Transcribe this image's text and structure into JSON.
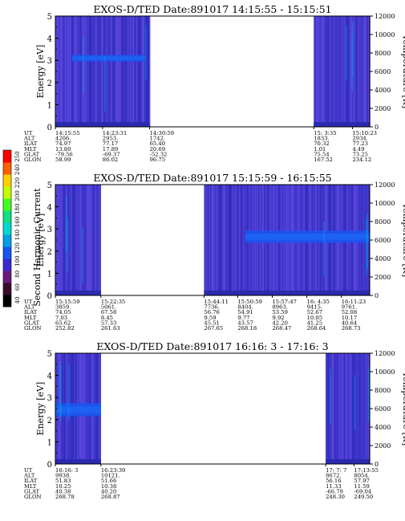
{
  "chart_data": {
    "type": "heatmap",
    "colorbar": {
      "label": "Second Harmonic Current",
      "ticks": [
        "40",
        "60",
        "80",
        "100",
        "120",
        "140",
        "160",
        "180",
        "200",
        "220",
        "240",
        "250"
      ],
      "colors": [
        "#000000",
        "#3a0a2e",
        "#6a1a7a",
        "#3a2ad0",
        "#1a55f0",
        "#00a0e8",
        "#00d8d0",
        "#10e080",
        "#40ff20",
        "#c0ff00",
        "#ffd000",
        "#ff6000",
        "#ff0000"
      ]
    },
    "panels": [
      {
        "title": "EXOS-D/TED   Date:891017  14:15:55 - 15:15:51",
        "ylabel": "Energy [eV]",
        "ylabel_right": "Temperature [K]",
        "yticks": [
          "0",
          "1",
          "2",
          "3",
          "4",
          "5"
        ],
        "yticks_right": [
          "0",
          "2000",
          "4000",
          "6000",
          "8000",
          "10000",
          "12000"
        ],
        "ylim": [
          0,
          5
        ],
        "ylim_right": [
          0,
          12000
        ],
        "data_segments": [
          [
            0.0,
            0.3
          ],
          [
            0.822,
            1.0
          ]
        ],
        "band": {
          "segment": 0,
          "center": 3.1,
          "width": 0.3,
          "range": [
            0.18,
            0.95
          ]
        },
        "orbit_labels": [
          "UT",
          "ALT",
          "ILAT",
          "MLT",
          "GLAT",
          "GLON"
        ],
        "orbit_columns": [
          {
            "frac": 0.0,
            "values": [
              "14:15:55",
              "4206.",
              "74.97",
              "13.80",
              "-79.56",
              "58.99"
            ]
          },
          {
            "frac": 0.15,
            "values": [
              "14:23:31",
              "2953.",
              "77.17",
              "17.89",
              "-69.37",
              "86.02"
            ]
          },
          {
            "frac": 0.3,
            "values": [
              "14:30:59",
              "1742.",
              "65.40",
              "20.69",
              "-52.32",
              "96.75"
            ]
          },
          {
            "frac": 0.822,
            "values": [
              "15: 3:35",
              "1833.",
              "70.32",
              "1.01",
              "75.54",
              "167.52"
            ]
          },
          {
            "frac": 0.945,
            "values": [
              "15:10:23",
              "2934.",
              "77.23",
              "4.49",
              "73.25",
              "234.12"
            ]
          }
        ]
      },
      {
        "title": "EXOS-D/TED   Date:891017  15:15:59 - 16:15:55",
        "ylabel": "Energy [eV]",
        "ylabel_right": "Temperature [K]",
        "yticks": [
          "0",
          "1",
          "2",
          "3",
          "4",
          "5"
        ],
        "yticks_right": [
          "0",
          "2000",
          "4000",
          "6000",
          "8000",
          "10000",
          "12000"
        ],
        "ylim": [
          0,
          5
        ],
        "ylim_right": [
          0,
          12000
        ],
        "data_segments": [
          [
            0.0,
            0.145
          ],
          [
            0.473,
            1.0
          ]
        ],
        "band": {
          "segment": 1,
          "center": 2.65,
          "width": 0.55,
          "range": [
            0.25,
            1.0
          ]
        },
        "orbit_labels": [
          "UT",
          "ALT",
          "ILAT",
          "MLT",
          "GLAT",
          "GLON"
        ],
        "orbit_columns": [
          {
            "frac": 0.0,
            "values": [
              "15:15:59",
              "3859.",
              "74.05",
              "7.03",
              "65.62",
              "252.82"
            ]
          },
          {
            "frac": 0.145,
            "values": [
              "15:22:35",
              "5061.",
              "67.58",
              "8.45",
              "57.33",
              "261.63"
            ]
          },
          {
            "frac": 0.473,
            "values": [
              "15:44:11",
              "7736.",
              "56.76",
              "9.59",
              "45.51",
              "267.65"
            ]
          },
          {
            "frac": 0.58,
            "values": [
              "15:50:59",
              "8404.",
              "54.91",
              "9.77",
              "43.57",
              "268.18"
            ]
          },
          {
            "frac": 0.69,
            "values": [
              "15:57:47",
              "8963.",
              "53.59",
              "9.92",
              "42.20",
              "268.47"
            ]
          },
          {
            "frac": 0.8,
            "values": [
              "16: 4:35",
              "9415.",
              "52.67",
              "10.05",
              "41.25",
              "268.64"
            ]
          },
          {
            "frac": 0.91,
            "values": [
              "16:11:23",
              "9761.",
              "52.08",
              "10.17",
              "40.64",
              "268.73"
            ]
          }
        ]
      },
      {
        "title": "EXOS-D/TED   Date:891017  16:16: 3 - 17:16: 3",
        "ylabel": "Energy [eV]",
        "ylabel_right": "Temperature [K]",
        "yticks": [
          "0",
          "1",
          "2",
          "3",
          "4",
          "5"
        ],
        "yticks_right": [
          "0",
          "2000",
          "4000",
          "6000",
          "8000",
          "10000",
          "12000"
        ],
        "ylim": [
          0,
          5
        ],
        "ylim_right": [
          0,
          12000
        ],
        "data_segments": [
          [
            0.0,
            0.145
          ],
          [
            0.86,
            1.0
          ]
        ],
        "band": {
          "segment": 0,
          "center": 2.45,
          "width": 0.6,
          "range": [
            0.0,
            1.0
          ]
        },
        "orbit_labels": [
          "UT",
          "ALT",
          "ILAT",
          "MLT",
          "GLAT",
          "GLON"
        ],
        "orbit_columns": [
          {
            "frac": 0.0,
            "values": [
              "16:16: 3",
              "9938.",
              "51.83",
              "10.25",
              "40.38",
              "268.78"
            ]
          },
          {
            "frac": 0.145,
            "values": [
              "16:23:39",
              "10121.",
              "51.66",
              "10.38",
              "40.20",
              "268.87"
            ]
          },
          {
            "frac": 0.86,
            "values": [
              "17: 7: 7",
              "8672.",
              "56.16",
              "11.33",
              "-66.79",
              "248.30"
            ]
          },
          {
            "frac": 0.95,
            "values": [
              "17:13:55",
              "8054.",
              "57.97",
              "11.59",
              "-69.04",
              "249.50"
            ]
          }
        ]
      }
    ]
  }
}
